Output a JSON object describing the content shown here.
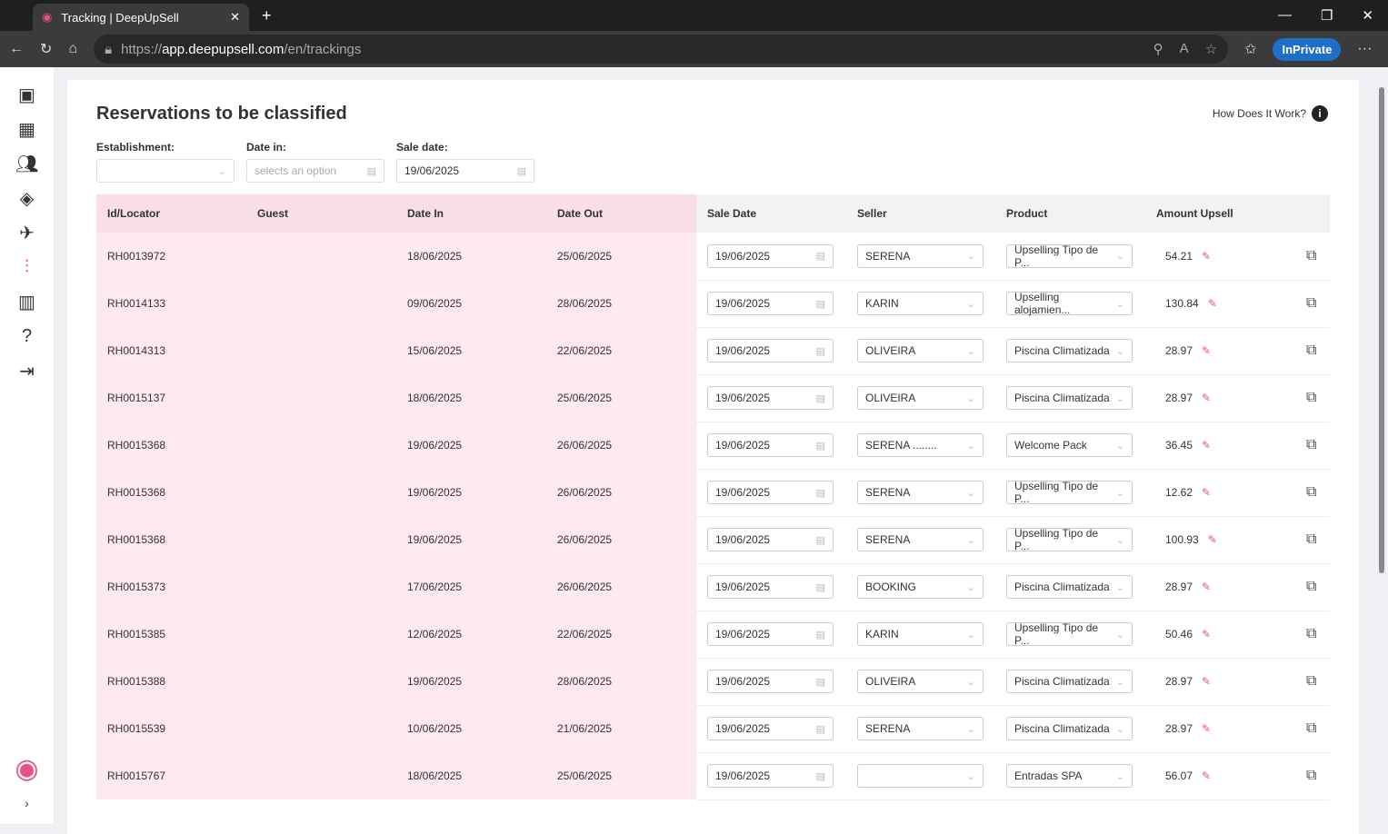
{
  "browser": {
    "tab_title": "Tracking | DeepUpSell",
    "url_prefix": "https://",
    "url_host": "app.deepupsell.com",
    "url_path": "/en/trackings",
    "inprivate": "InPrivate"
  },
  "page": {
    "title": "Reservations to be classified",
    "how": "How Does It Work?"
  },
  "filters": {
    "establishment_label": "Establishment:",
    "establishment_value": "",
    "date_in_label": "Date in:",
    "date_in_placeholder": "selects an option",
    "sale_date_label": "Sale date:",
    "sale_date_value": "19/06/2025"
  },
  "colors": {
    "accent": "#e8508a",
    "left_bg": "#fde9ee"
  },
  "columns": [
    "Id/Locator",
    "Guest",
    "Date In",
    "Date Out",
    "Sale Date",
    "Seller",
    "Product",
    "Amount Upsell"
  ],
  "rows": [
    {
      "id": "RH0013972",
      "guest": "",
      "in": "18/06/2025",
      "out": "25/06/2025",
      "sale": "19/06/2025",
      "seller": "SERENA",
      "product": "Upselling Tipo de P...",
      "amount": "54.21"
    },
    {
      "id": "RH0014133",
      "guest": "",
      "in": "09/06/2025",
      "out": "28/06/2025",
      "sale": "19/06/2025",
      "seller": "KARIN",
      "product": "Upselling alojamien...",
      "amount": "130.84"
    },
    {
      "id": "RH0014313",
      "guest": "",
      "in": "15/06/2025",
      "out": "22/06/2025",
      "sale": "19/06/2025",
      "seller": "OLIVEIRA",
      "product": "Piscina Climatizada",
      "amount": "28.97"
    },
    {
      "id": "RH0015137",
      "guest": "",
      "in": "18/06/2025",
      "out": "25/06/2025",
      "sale": "19/06/2025",
      "seller": "OLIVEIRA",
      "product": "Piscina Climatizada",
      "amount": "28.97"
    },
    {
      "id": "RH0015368",
      "guest": "",
      "in": "19/06/2025",
      "out": "26/06/2025",
      "sale": "19/06/2025",
      "seller": "SERENA ........",
      "product": "Welcome Pack",
      "amount": "36.45"
    },
    {
      "id": "RH0015368",
      "guest": "",
      "in": "19/06/2025",
      "out": "26/06/2025",
      "sale": "19/06/2025",
      "seller": "SERENA",
      "product": "Upselling Tipo de P...",
      "amount": "12.62"
    },
    {
      "id": "RH0015368",
      "guest": "",
      "in": "19/06/2025",
      "out": "26/06/2025",
      "sale": "19/06/2025",
      "seller": "SERENA",
      "product": "Upselling Tipo de P...",
      "amount": "100.93"
    },
    {
      "id": "RH0015373",
      "guest": "",
      "in": "17/06/2025",
      "out": "26/06/2025",
      "sale": "19/06/2025",
      "seller": "BOOKING",
      "product": "Piscina Climatizada",
      "amount": "28.97"
    },
    {
      "id": "RH0015385",
      "guest": "",
      "in": "12/06/2025",
      "out": "22/06/2025",
      "sale": "19/06/2025",
      "seller": "KARIN",
      "product": "Upselling Tipo de P...",
      "amount": "50.46"
    },
    {
      "id": "RH0015388",
      "guest": "",
      "in": "19/06/2025",
      "out": "28/06/2025",
      "sale": "19/06/2025",
      "seller": "OLIVEIRA",
      "product": "Piscina Climatizada",
      "amount": "28.97"
    },
    {
      "id": "RH0015539",
      "guest": "",
      "in": "10/06/2025",
      "out": "21/06/2025",
      "sale": "19/06/2025",
      "seller": "SERENA",
      "product": "Piscina Climatizada",
      "amount": "28.97"
    },
    {
      "id": "RH0015767",
      "guest": "",
      "in": "18/06/2025",
      "out": "25/06/2025",
      "sale": "19/06/2025",
      "seller": "",
      "product": "Entradas SPA",
      "amount": "56.07"
    }
  ]
}
